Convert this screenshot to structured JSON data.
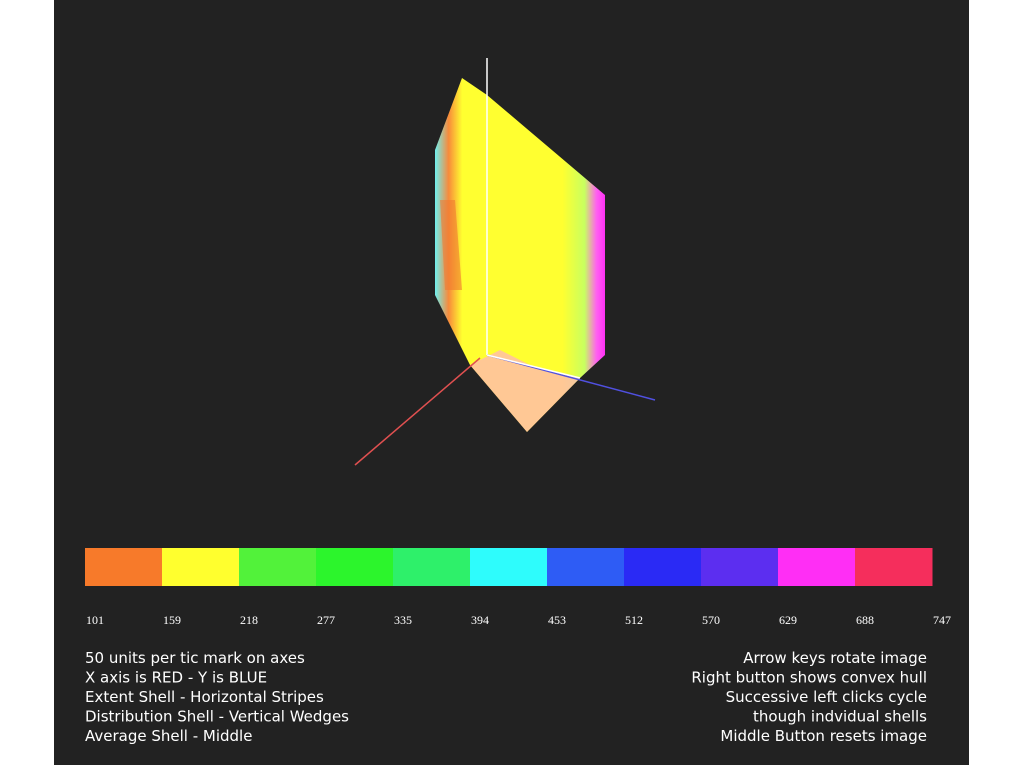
{
  "colorbar": {
    "colors": [
      "#f77a2a",
      "#ffff2e",
      "#52f23a",
      "#2cf52c",
      "#2ef06a",
      "#2efcfc",
      "#2e5cf5",
      "#2a2af5",
      "#5c2ef0",
      "#ff2ef5",
      "#f52e5c"
    ],
    "labels": [
      101,
      159,
      218,
      277,
      335,
      394,
      453,
      512,
      570,
      629,
      688,
      747
    ]
  },
  "left_notes": [
    "50   units per tic mark on axes",
    "X axis is  RED - Y is BLUE",
    "Extent Shell - Horizontal Stripes",
    "Distribution Shell - Vertical Wedges",
    "Average Shell - Middle"
  ],
  "right_notes": [
    "Arrow keys rotate image",
    "Right button shows convex hull",
    "Successive left clicks cycle",
    "though indvidual shells",
    "Middle Button resets image"
  ]
}
